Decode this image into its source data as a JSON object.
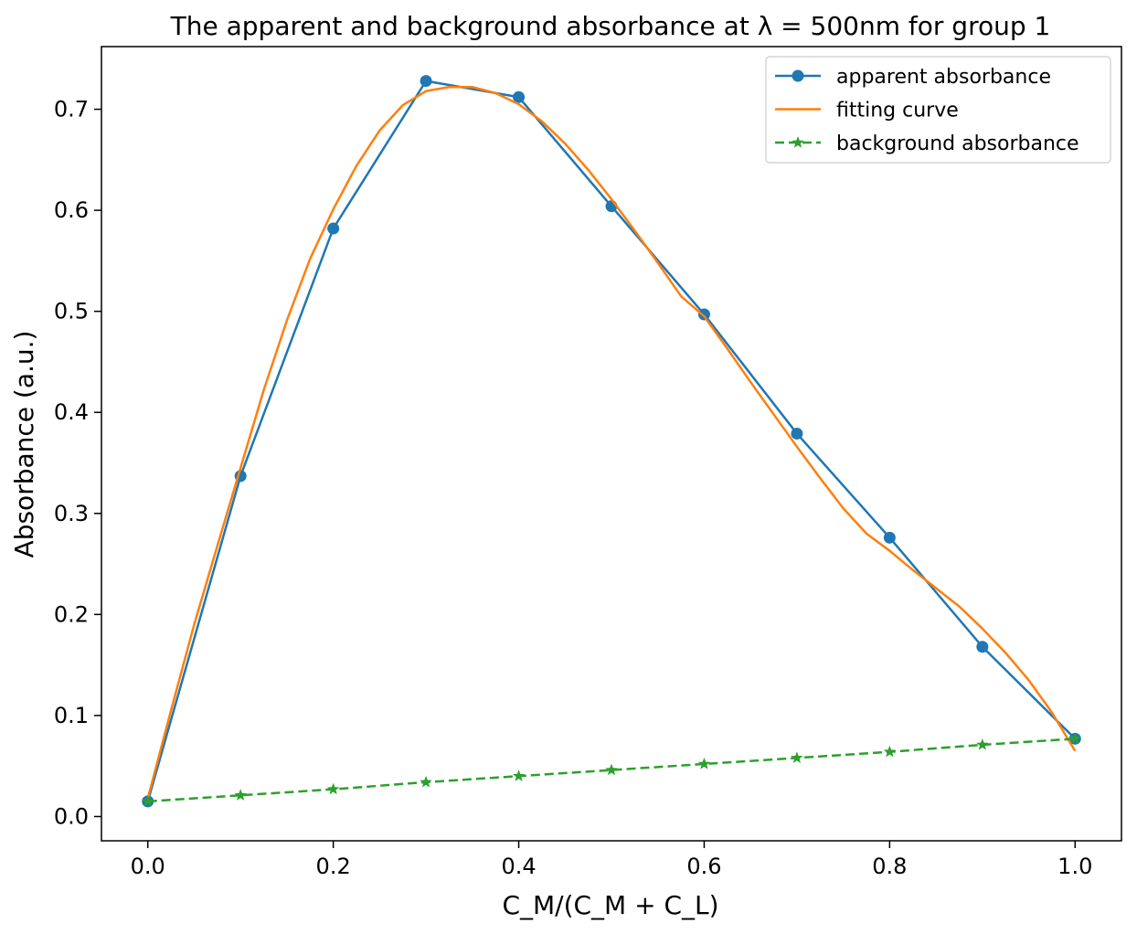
{
  "chart_data": {
    "type": "line",
    "title": "The apparent and background absorbance at λ = 500nm for group 1",
    "xlabel": "C_M/(C_M + C_L)",
    "ylabel": "Absorbance (a.u.)",
    "xlim": [
      -0.05,
      1.05
    ],
    "ylim": [
      -0.024,
      0.762
    ],
    "x_ticks": [
      0.0,
      0.2,
      0.4,
      0.6,
      0.8,
      1.0
    ],
    "x_tick_labels": [
      "0.0",
      "0.2",
      "0.4",
      "0.6",
      "0.8",
      "1.0"
    ],
    "y_ticks": [
      0.0,
      0.1,
      0.2,
      0.3,
      0.4,
      0.5,
      0.6,
      0.7
    ],
    "y_tick_labels": [
      "0.0",
      "0.1",
      "0.2",
      "0.3",
      "0.4",
      "0.5",
      "0.6",
      "0.7"
    ],
    "grid": false,
    "legend_position": "top-right",
    "series": [
      {
        "name": "apparent absorbance",
        "color": "#1f77b4",
        "line_style": "solid",
        "marker": "circle",
        "x": [
          0.0,
          0.1,
          0.2,
          0.3,
          0.4,
          0.5,
          0.6,
          0.7,
          0.8,
          0.9,
          1.0
        ],
        "y": [
          0.015,
          0.337,
          0.582,
          0.728,
          0.712,
          0.604,
          0.497,
          0.379,
          0.276,
          0.168,
          0.077
        ]
      },
      {
        "name": "fitting curve",
        "color": "#ff7f0e",
        "line_style": "solid",
        "marker": "none",
        "x": [
          0.0,
          0.025,
          0.05,
          0.075,
          0.1,
          0.125,
          0.15,
          0.175,
          0.2,
          0.225,
          0.25,
          0.275,
          0.3,
          0.325,
          0.35,
          0.375,
          0.4,
          0.425,
          0.45,
          0.475,
          0.5,
          0.525,
          0.55,
          0.575,
          0.6,
          0.625,
          0.65,
          0.675,
          0.7,
          0.725,
          0.75,
          0.775,
          0.8,
          0.825,
          0.85,
          0.875,
          0.9,
          0.925,
          0.95,
          0.975,
          1.0
        ],
        "y": [
          0.018,
          0.105,
          0.19,
          0.268,
          0.345,
          0.422,
          0.491,
          0.552,
          0.601,
          0.644,
          0.679,
          0.704,
          0.718,
          0.722,
          0.722,
          0.716,
          0.705,
          0.688,
          0.666,
          0.64,
          0.611,
          0.58,
          0.548,
          0.515,
          0.495,
          0.463,
          0.43,
          0.398,
          0.366,
          0.335,
          0.305,
          0.28,
          0.263,
          0.244,
          0.226,
          0.208,
          0.186,
          0.162,
          0.135,
          0.103,
          0.065
        ]
      },
      {
        "name": "background absorbance",
        "color": "#2ca02c",
        "line_style": "dashed",
        "marker": "star",
        "x": [
          0.0,
          0.1,
          0.2,
          0.3,
          0.4,
          0.5,
          0.6,
          0.7,
          0.8,
          0.9,
          1.0
        ],
        "y": [
          0.015,
          0.021,
          0.027,
          0.034,
          0.04,
          0.046,
          0.052,
          0.058,
          0.064,
          0.071,
          0.077
        ]
      }
    ]
  }
}
